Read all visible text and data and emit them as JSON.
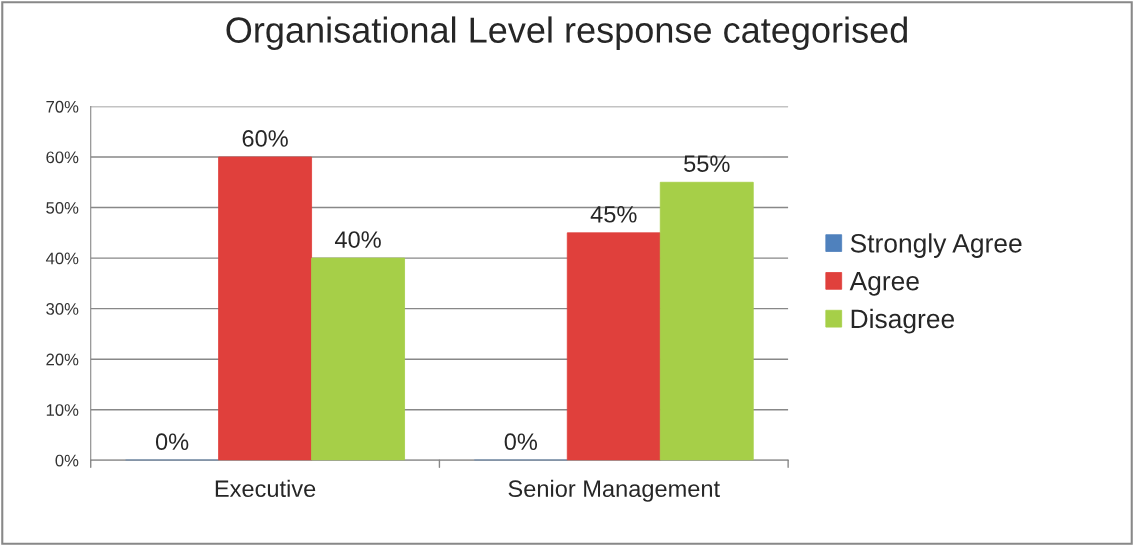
{
  "chart_data": {
    "type": "bar",
    "title": "Organisational Level response categorised",
    "categories": [
      "Executive",
      "Senior Management"
    ],
    "series": [
      {
        "name": "Strongly Agree",
        "color": "#4f81bd",
        "values": [
          0,
          0
        ],
        "value_labels": [
          "0%",
          "0%"
        ]
      },
      {
        "name": "Agree",
        "color": "#e0403c",
        "values": [
          60,
          45
        ],
        "value_labels": [
          "60%",
          "45%"
        ]
      },
      {
        "name": "Disagree",
        "color": "#a6cf48",
        "values": [
          40,
          55
        ],
        "value_labels": [
          "40%",
          "55%"
        ]
      }
    ],
    "ylim": [
      0,
      70
    ],
    "yticks": [
      {
        "value": 0,
        "label": "0%"
      },
      {
        "value": 10,
        "label": "10%"
      },
      {
        "value": 20,
        "label": "20%"
      },
      {
        "value": 30,
        "label": "30%"
      },
      {
        "value": 40,
        "label": "40%"
      },
      {
        "value": 50,
        "label": "50%"
      },
      {
        "value": 60,
        "label": "60%"
      },
      {
        "value": 70,
        "label": "70%"
      }
    ],
    "grid": "y",
    "legend": "right"
  }
}
